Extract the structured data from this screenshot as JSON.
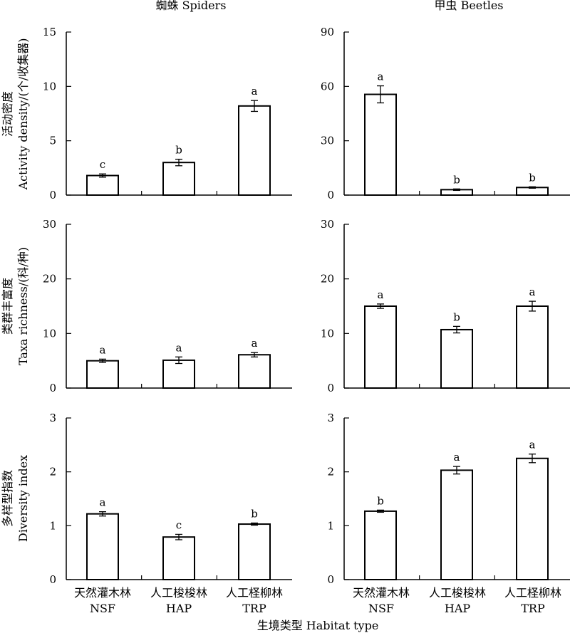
{
  "figure": {
    "column_titles": [
      "蜘蛛 Spiders",
      "甲虫 Beetles"
    ],
    "row_ylabels": [
      [
        "活动密度",
        "Activity density/(个/收集器)"
      ],
      [
        "类群丰富度",
        "Taxa richness/(科/种)"
      ],
      [
        "多样型指数",
        "Diversity index"
      ]
    ],
    "xlabel": "生境类型 Habitat type",
    "categories_cn": [
      "天然灌木林",
      "人工梭梭林",
      "人工柽柳林"
    ],
    "categories_en": [
      "NSF",
      "HAP",
      "TRP"
    ]
  },
  "chart_data": [
    {
      "type": "bar",
      "column": "蜘蛛 Spiders",
      "row": 0,
      "ylim": [
        0,
        15
      ],
      "yticks": [
        0,
        5,
        10,
        15
      ],
      "categories": [
        "NSF",
        "HAP",
        "TRP"
      ],
      "values": [
        1.8,
        3.0,
        8.2
      ],
      "errors": [
        0.15,
        0.3,
        0.5
      ],
      "labels": [
        "c",
        "b",
        "a"
      ]
    },
    {
      "type": "bar",
      "column": "甲虫 Beetles",
      "row": 0,
      "ylim": [
        0,
        90
      ],
      "yticks": [
        0,
        30,
        60,
        90
      ],
      "categories": [
        "NSF",
        "HAP",
        "TRP"
      ],
      "values": [
        55.6,
        3.0,
        4.2
      ],
      "errors": [
        4.7,
        0.4,
        0.4
      ],
      "labels": [
        "a",
        "b",
        "b"
      ]
    },
    {
      "type": "bar",
      "column": "蜘蛛 Spiders",
      "row": 1,
      "ylim": [
        0,
        30
      ],
      "yticks": [
        0,
        10,
        20,
        30
      ],
      "categories": [
        "NSF",
        "HAP",
        "TRP"
      ],
      "values": [
        5.0,
        5.1,
        6.1
      ],
      "errors": [
        0.3,
        0.6,
        0.4
      ],
      "labels": [
        "a",
        "a",
        "a"
      ]
    },
    {
      "type": "bar",
      "column": "甲虫 Beetles",
      "row": 1,
      "ylim": [
        0,
        30
      ],
      "yticks": [
        0,
        10,
        20,
        30
      ],
      "categories": [
        "NSF",
        "HAP",
        "TRP"
      ],
      "values": [
        15.0,
        10.7,
        15.0
      ],
      "errors": [
        0.4,
        0.6,
        0.9
      ],
      "labels": [
        "a",
        "b",
        "a"
      ]
    },
    {
      "type": "bar",
      "column": "蜘蛛 Spiders",
      "row": 2,
      "ylim": [
        0,
        3
      ],
      "yticks": [
        0,
        1,
        2,
        3
      ],
      "categories": [
        "NSF",
        "HAP",
        "TRP"
      ],
      "values": [
        1.22,
        0.79,
        1.03
      ],
      "errors": [
        0.04,
        0.05,
        0.02
      ],
      "labels": [
        "a",
        "c",
        "b"
      ]
    },
    {
      "type": "bar",
      "column": "甲虫 Beetles",
      "row": 2,
      "ylim": [
        0,
        3
      ],
      "yticks": [
        0,
        1,
        2,
        3
      ],
      "categories": [
        "NSF",
        "HAP",
        "TRP"
      ],
      "values": [
        1.27,
        2.03,
        2.25
      ],
      "errors": [
        0.02,
        0.07,
        0.08
      ],
      "labels": [
        "b",
        "a",
        "a"
      ]
    }
  ]
}
